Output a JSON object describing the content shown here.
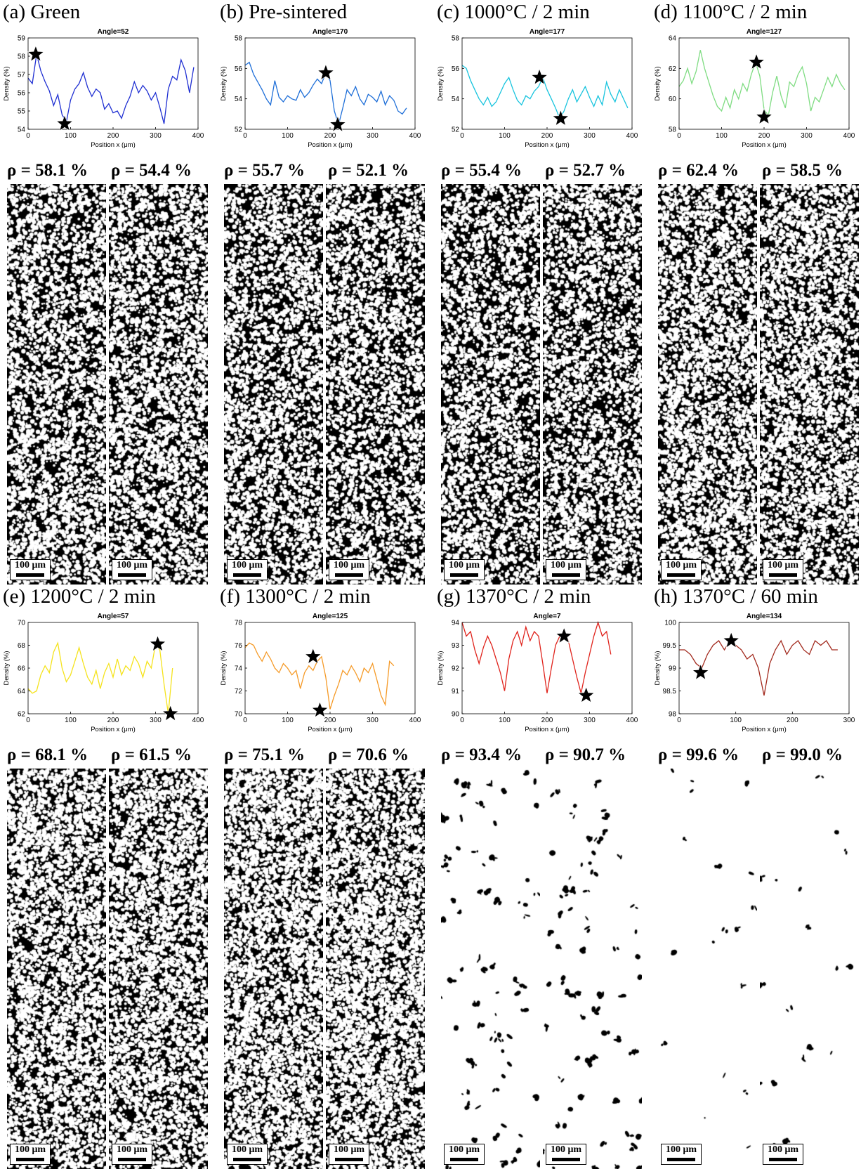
{
  "panels": [
    {
      "label": "(a) Green",
      "color": "#1f2fd2",
      "chart": {
        "type": "line",
        "title": "Angle=52",
        "xlabel": "Position x (μm)",
        "ylabel": "Density (%)",
        "xlim": [
          0,
          400
        ],
        "ylim": [
          54,
          59
        ],
        "xticks": [
          0,
          100,
          200,
          300,
          400
        ],
        "yticks": [
          54,
          55,
          56,
          57,
          58,
          59
        ],
        "x": [
          0,
          10,
          20,
          30,
          40,
          50,
          60,
          70,
          80,
          90,
          100,
          110,
          120,
          130,
          140,
          150,
          160,
          170,
          180,
          190,
          200,
          210,
          220,
          230,
          240,
          250,
          260,
          270,
          280,
          290,
          300,
          310,
          320,
          330,
          340,
          350,
          360,
          370,
          380,
          390
        ],
        "y": [
          56.8,
          56.5,
          58.1,
          57.2,
          56.6,
          56.1,
          55.3,
          55.9,
          54.8,
          54.4,
          55.6,
          56.2,
          56.5,
          57.1,
          56.3,
          55.8,
          56.2,
          56.0,
          55.1,
          55.4,
          54.9,
          55.0,
          54.6,
          55.3,
          55.8,
          56.6,
          56.0,
          56.4,
          56.1,
          55.6,
          56.0,
          55.2,
          54.3,
          56.2,
          56.9,
          56.7,
          57.8,
          57.2,
          56.0,
          57.4
        ],
        "stars": [
          {
            "x": 18,
            "y": 58.1
          },
          {
            "x": 86,
            "y": 54.3
          }
        ]
      },
      "rho": [
        "ρ = 58.1 %",
        "ρ = 54.4 %"
      ],
      "density": 0.581,
      "pores": 0,
      "scale": "100 μm"
    },
    {
      "label": "(b) Pre-sintered",
      "color": "#1f6fd8",
      "chart": {
        "type": "line",
        "title": "Angle=170",
        "xlabel": "Position x (μm)",
        "ylabel": "Density (%)",
        "xlim": [
          0,
          400
        ],
        "ylim": [
          52,
          58
        ],
        "xticks": [
          0,
          100,
          200,
          300,
          400
        ],
        "yticks": [
          52,
          54,
          56,
          58
        ],
        "x": [
          0,
          10,
          20,
          30,
          40,
          50,
          60,
          70,
          80,
          90,
          100,
          110,
          120,
          130,
          140,
          150,
          160,
          170,
          180,
          190,
          200,
          210,
          220,
          230,
          240,
          250,
          260,
          270,
          280,
          290,
          300,
          310,
          320,
          330,
          340,
          350,
          360,
          370,
          380
        ],
        "y": [
          56.2,
          56.4,
          55.6,
          55.1,
          54.6,
          54.0,
          53.6,
          55.2,
          54.1,
          53.8,
          54.2,
          54.0,
          53.9,
          54.6,
          54.1,
          54.4,
          54.9,
          55.3,
          55.0,
          55.7,
          55.2,
          53.2,
          52.3,
          53.4,
          54.6,
          54.2,
          54.8,
          54.0,
          53.6,
          54.3,
          54.1,
          53.8,
          54.5,
          53.6,
          54.2,
          53.9,
          53.2,
          53.0,
          53.4
        ],
        "stars": [
          {
            "x": 190,
            "y": 55.7
          },
          {
            "x": 218,
            "y": 52.3
          }
        ]
      },
      "rho": [
        "ρ = 55.7 %",
        "ρ = 52.1 %"
      ],
      "density": 0.557,
      "pores": 0,
      "scale": "100 μm"
    },
    {
      "label": "(c) 1000°C / 2 min",
      "color": "#18c4de",
      "chart": {
        "type": "line",
        "title": "Angle=177",
        "xlabel": "Position x (μm)",
        "ylabel": "Density (%)",
        "xlim": [
          0,
          400
        ],
        "ylim": [
          52,
          58
        ],
        "xticks": [
          0,
          100,
          200,
          300,
          400
        ],
        "yticks": [
          52,
          54,
          56,
          58
        ],
        "x": [
          0,
          10,
          20,
          30,
          40,
          50,
          60,
          70,
          80,
          90,
          100,
          110,
          120,
          130,
          140,
          150,
          160,
          170,
          180,
          190,
          200,
          210,
          220,
          230,
          240,
          250,
          260,
          270,
          280,
          290,
          300,
          310,
          320,
          330,
          340,
          350,
          360,
          370,
          380,
          390
        ],
        "y": [
          56.2,
          56.0,
          55.2,
          54.6,
          54.0,
          53.6,
          54.1,
          53.5,
          53.8,
          54.4,
          55.0,
          55.4,
          54.6,
          53.9,
          53.6,
          54.2,
          54.0,
          54.5,
          54.8,
          55.4,
          54.6,
          54.0,
          53.4,
          52.7,
          53.2,
          54.0,
          54.6,
          53.8,
          54.3,
          54.8,
          54.1,
          53.5,
          54.2,
          53.6,
          55.1,
          54.3,
          53.8,
          54.6,
          54.0,
          53.4
        ],
        "stars": [
          {
            "x": 182,
            "y": 55.4
          },
          {
            "x": 232,
            "y": 52.7
          }
        ]
      },
      "rho": [
        "ρ = 55.4 %",
        "ρ = 52.7 %"
      ],
      "density": 0.554,
      "pores": 0,
      "scale": "100 μm"
    },
    {
      "label": "(d) 1100°C / 2 min",
      "color": "#7fdc82",
      "chart": {
        "type": "line",
        "title": "Angle=127",
        "xlabel": "Position x (μm)",
        "ylabel": "Density (%)",
        "xlim": [
          0,
          400
        ],
        "ylim": [
          58,
          64
        ],
        "xticks": [
          0,
          100,
          200,
          300,
          400
        ],
        "yticks": [
          58,
          60,
          62,
          64
        ],
        "x": [
          0,
          10,
          20,
          30,
          40,
          50,
          60,
          70,
          80,
          90,
          100,
          110,
          120,
          130,
          140,
          150,
          160,
          170,
          180,
          190,
          200,
          210,
          220,
          230,
          240,
          250,
          260,
          270,
          280,
          290,
          300,
          310,
          320,
          330,
          340,
          350,
          360,
          370,
          380,
          390
        ],
        "y": [
          60.8,
          61.2,
          62.0,
          61.0,
          61.8,
          63.2,
          62.0,
          61.1,
          60.2,
          59.5,
          59.2,
          60.1,
          59.4,
          60.6,
          60.0,
          61.0,
          60.5,
          61.6,
          62.4,
          61.5,
          59.3,
          58.9,
          60.4,
          61.5,
          60.2,
          59.4,
          61.1,
          60.8,
          61.6,
          62.1,
          61.0,
          59.2,
          60.1,
          59.8,
          60.6,
          61.4,
          60.8,
          61.6,
          61.0,
          60.6
        ],
        "stars": [
          {
            "x": 182,
            "y": 62.4
          },
          {
            "x": 200,
            "y": 58.8
          }
        ]
      },
      "rho": [
        "ρ = 62.4 %",
        "ρ = 58.5 %"
      ],
      "density": 0.624,
      "pores": 0,
      "scale": "100 μm"
    },
    {
      "label": "(e) 1200°C / 2 min",
      "color": "#f5e31c",
      "chart": {
        "type": "line",
        "title": "Angle=57",
        "xlabel": "Position x (μm)",
        "ylabel": "Density (%)",
        "xlim": [
          0,
          400
        ],
        "ylim": [
          62,
          70
        ],
        "xticks": [
          0,
          100,
          200,
          300,
          400
        ],
        "yticks": [
          62,
          64,
          66,
          68,
          70
        ],
        "x": [
          0,
          10,
          20,
          30,
          40,
          50,
          60,
          70,
          80,
          90,
          100,
          110,
          120,
          130,
          140,
          150,
          160,
          170,
          180,
          190,
          200,
          210,
          220,
          230,
          240,
          250,
          260,
          270,
          280,
          290,
          300,
          310,
          320,
          330,
          340
        ],
        "y": [
          64.2,
          63.8,
          64.0,
          65.4,
          66.2,
          65.6,
          67.4,
          68.2,
          66.0,
          64.8,
          65.4,
          66.6,
          67.8,
          66.4,
          65.2,
          64.6,
          65.8,
          64.2,
          65.6,
          66.4,
          65.2,
          66.8,
          65.4,
          66.2,
          65.8,
          67.0,
          66.4,
          65.2,
          66.6,
          66.0,
          68.1,
          67.6,
          64.6,
          62.0,
          66.0
        ],
        "stars": [
          {
            "x": 305,
            "y": 68.1
          },
          {
            "x": 335,
            "y": 62.0
          }
        ]
      },
      "rho": [
        "ρ = 68.1 %",
        "ρ = 61.5 %"
      ],
      "density": 0.68,
      "pores": 0,
      "scale": "100 μm"
    },
    {
      "label": "(f) 1300°C / 2 min",
      "color": "#f59a27",
      "chart": {
        "type": "line",
        "title": "Angle=125",
        "xlabel": "Position x (μm)",
        "ylabel": "Density (%)",
        "xlim": [
          0,
          400
        ],
        "ylim": [
          70,
          78
        ],
        "xticks": [
          0,
          100,
          200,
          300,
          400
        ],
        "yticks": [
          70,
          72,
          74,
          76,
          78
        ],
        "x": [
          0,
          10,
          20,
          30,
          40,
          50,
          60,
          70,
          80,
          90,
          100,
          110,
          120,
          130,
          140,
          150,
          160,
          170,
          180,
          190,
          200,
          210,
          220,
          230,
          240,
          250,
          260,
          270,
          280,
          290,
          300,
          310,
          320,
          330,
          340,
          350
        ],
        "y": [
          75.8,
          76.2,
          76.0,
          75.2,
          74.6,
          75.4,
          74.8,
          74.0,
          73.6,
          74.4,
          74.0,
          73.4,
          73.8,
          72.2,
          73.6,
          74.2,
          73.8,
          74.6,
          75.0,
          73.2,
          70.4,
          71.6,
          72.6,
          73.8,
          73.4,
          74.2,
          73.6,
          72.8,
          74.0,
          73.6,
          74.4,
          73.0,
          71.6,
          70.8,
          74.6,
          74.2
        ],
        "stars": [
          {
            "x": 160,
            "y": 75.0
          },
          {
            "x": 176,
            "y": 70.3
          }
        ]
      },
      "rho": [
        "ρ = 75.1 %",
        "ρ = 70.6 %"
      ],
      "density": 0.74,
      "pores": 0,
      "scale": "100 μm"
    },
    {
      "label": "(g) 1370°C / 2 min",
      "color": "#e0231c",
      "chart": {
        "type": "line",
        "title": "Angle=7",
        "xlabel": "Position x (μm)",
        "ylabel": "Density (%)",
        "xlim": [
          0,
          400
        ],
        "ylim": [
          90,
          94
        ],
        "xticks": [
          0,
          100,
          200,
          300,
          400
        ],
        "yticks": [
          90,
          91,
          92,
          93,
          94
        ],
        "x": [
          0,
          10,
          20,
          30,
          40,
          50,
          60,
          70,
          80,
          90,
          100,
          110,
          120,
          130,
          140,
          150,
          160,
          170,
          180,
          190,
          200,
          210,
          220,
          230,
          240,
          250,
          260,
          270,
          280,
          290,
          300,
          310,
          320,
          330,
          340,
          350
        ],
        "y": [
          94.0,
          93.4,
          93.6,
          92.8,
          92.2,
          92.9,
          93.4,
          93.0,
          92.4,
          91.8,
          91.0,
          92.4,
          93.2,
          93.6,
          93.0,
          93.8,
          93.2,
          93.6,
          93.4,
          92.2,
          90.9,
          92.0,
          93.0,
          93.4,
          93.6,
          93.2,
          92.4,
          91.6,
          90.9,
          91.8,
          92.6,
          93.4,
          94.0,
          93.4,
          93.6,
          92.6
        ],
        "stars": [
          {
            "x": 240,
            "y": 93.4
          },
          {
            "x": 292,
            "y": 90.8
          }
        ]
      },
      "rho": [
        "ρ = 93.4 %",
        "ρ = 90.7 %"
      ],
      "density": 0,
      "pores": 70,
      "scale": "100 μm"
    },
    {
      "label": "(h) 1370°C / 60 min",
      "color": "#a22a1e",
      "chart": {
        "type": "line",
        "title": "Angle=134",
        "xlabel": "Position x (μm)",
        "ylabel": "Density (%)",
        "xlim": [
          0,
          300
        ],
        "ylim": [
          98,
          100
        ],
        "xticks": [
          0,
          100,
          200,
          300
        ],
        "yticks": [
          98,
          98.5,
          99,
          99.5,
          100
        ],
        "x": [
          0,
          10,
          20,
          30,
          40,
          50,
          60,
          70,
          80,
          90,
          100,
          110,
          120,
          130,
          140,
          150,
          160,
          170,
          180,
          190,
          200,
          210,
          220,
          230,
          240,
          250,
          260,
          270,
          280
        ],
        "y": [
          99.4,
          99.4,
          99.3,
          99.1,
          99.0,
          99.3,
          99.5,
          99.6,
          99.4,
          99.6,
          99.5,
          99.4,
          99.2,
          99.3,
          99.0,
          98.4,
          99.1,
          99.4,
          99.6,
          99.3,
          99.5,
          99.6,
          99.4,
          99.3,
          99.6,
          99.5,
          99.6,
          99.4,
          99.4
        ],
        "stars": [
          {
            "x": 38,
            "y": 98.9
          },
          {
            "x": 92,
            "y": 99.6
          }
        ]
      },
      "rho": [
        "ρ = 99.6 %",
        "ρ = 99.0 %"
      ],
      "density": 0,
      "pores": 12,
      "scale": "100 μm"
    }
  ]
}
